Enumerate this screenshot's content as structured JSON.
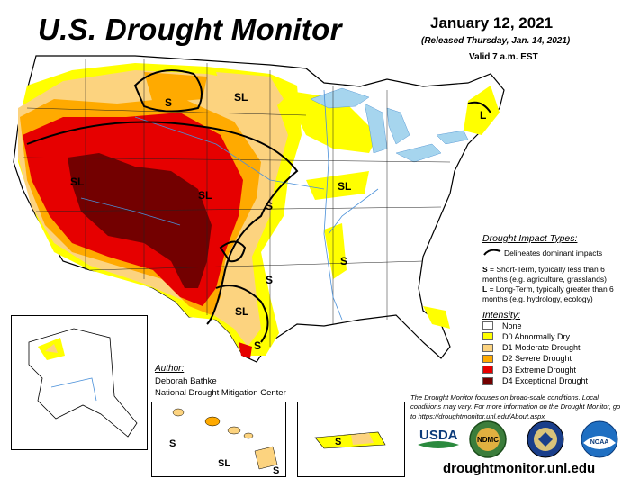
{
  "header": {
    "title": "U.S. Drought Monitor",
    "date": "January 12, 2021",
    "released": "(Released Thursday, Jan. 14, 2021)",
    "valid": "Valid 7 a.m. EST"
  },
  "map_labels": {
    "sl": "SL",
    "s": "S",
    "l": "L"
  },
  "impact_types": {
    "title": "Drought Impact Types:",
    "line_desc": "Delineates dominant impacts",
    "s_key": "S",
    "s_desc": " = Short-Term, typically less than 6 months (e.g. agriculture, grasslands)",
    "l_key": "L",
    "l_desc": " = Long-Term, typically greater than 6 months (e.g. hydrology, ecology)"
  },
  "intensity": {
    "title": "Intensity:",
    "levels": [
      {
        "label": "None",
        "color": "#ffffff"
      },
      {
        "label": "D0 Abnormally Dry",
        "color": "#ffff00"
      },
      {
        "label": "D1 Moderate Drought",
        "color": "#fcd37f"
      },
      {
        "label": "D2 Severe Drought",
        "color": "#ffaa00"
      },
      {
        "label": "D3 Extreme Drought",
        "color": "#e60000"
      },
      {
        "label": "D4 Exceptional Drought",
        "color": "#730000"
      }
    ]
  },
  "author": {
    "title": "Author:",
    "name": "Deborah Bathke",
    "org": "National Drought Mitigation Center"
  },
  "disclaimer": "The Drought Monitor focuses on broad-scale conditions. Local conditions may vary. For more information on the Drought Monitor, go to https://droughtmonitor.unl.edu/About.aspx",
  "logos": {
    "usda": "USDA",
    "ndmc": "NDMC",
    "noaa": "NOAA"
  },
  "url": "droughtmonitor.unl.edu"
}
